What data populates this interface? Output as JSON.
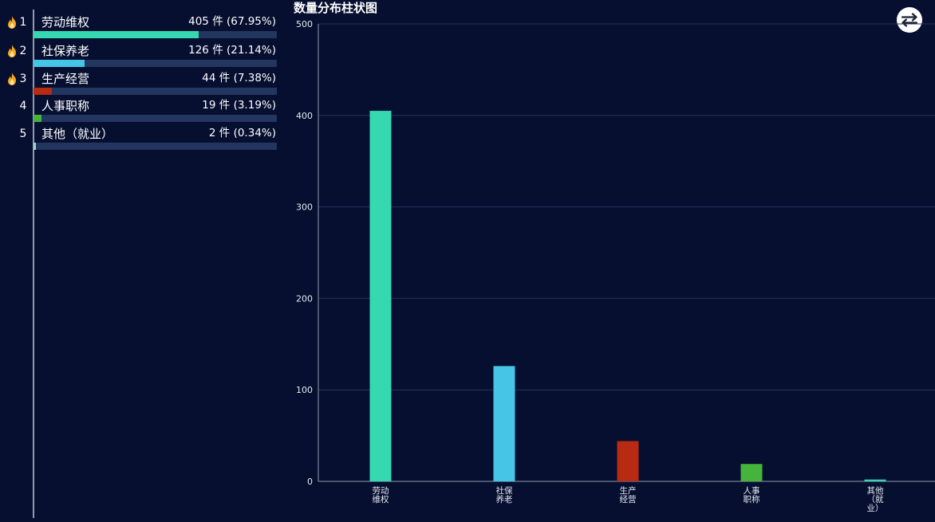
{
  "ranking": {
    "unit": "件",
    "items": [
      {
        "rank": "1",
        "label": "劳动维权",
        "count": "405",
        "percent": "(67.95%)",
        "ratio": 0.6795,
        "color": "#36d8b0",
        "hot": true
      },
      {
        "rank": "2",
        "label": "社保养老",
        "count": "126",
        "percent": "(21.14%)",
        "ratio": 0.2114,
        "color": "#46c6e6",
        "hot": true
      },
      {
        "rank": "3",
        "label": "生产经营",
        "count": "44",
        "percent": "(7.38%)",
        "ratio": 0.0738,
        "color": "#b82a12",
        "hot": true
      },
      {
        "rank": "4",
        "label": "人事职称",
        "count": "19",
        "percent": "(3.19%)",
        "ratio": 0.0319,
        "color": "#44b53a",
        "hot": false
      },
      {
        "rank": "5",
        "label": "其他（就业）",
        "count": "2",
        "percent": "(0.34%)",
        "ratio": 0.0034,
        "color": "#9fd6c8",
        "hot": false
      }
    ]
  },
  "chart": {
    "title": "数量分布柱状图",
    "switch_icon": "swap-arrows-icon"
  },
  "chart_data": {
    "type": "bar",
    "title": "数量分布柱状图",
    "categories": [
      "劳动维权",
      "社保养老",
      "生产经营",
      "人事职称",
      "其他（就业）"
    ],
    "category_tick_lines": [
      [
        "劳动",
        "维权"
      ],
      [
        "社保",
        "养老"
      ],
      [
        "生产",
        "经营"
      ],
      [
        "人事",
        "职称"
      ],
      [
        "其他",
        "（就",
        "业）"
      ]
    ],
    "values": [
      405,
      126,
      44,
      19,
      2
    ],
    "colors": [
      "#36d8b0",
      "#46c6e6",
      "#b82a12",
      "#44b53a",
      "#36d8b0"
    ],
    "ylim": [
      0,
      500
    ],
    "yticks": [
      "0",
      "100",
      "200",
      "300",
      "400",
      "500"
    ],
    "xlabel": "",
    "ylabel": "",
    "grid": true
  }
}
